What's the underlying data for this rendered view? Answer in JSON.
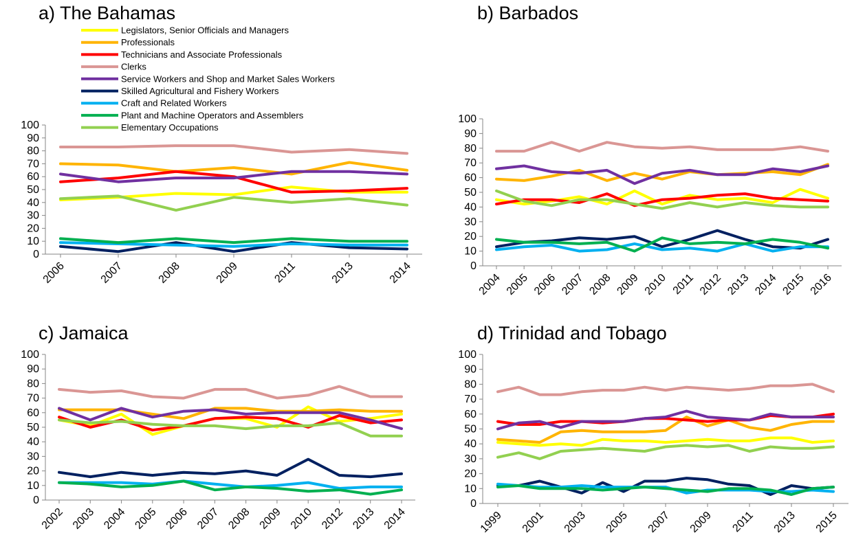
{
  "colors": {
    "Legislators, Senior Officials and Managers": "#ffff00",
    "Professionals": "#ffb400",
    "Technicians and Associate Professionals": "#ff0000",
    "Clerks": "#da9694",
    "Service Workers and Shop and Market Sales Workers": "#7030a0",
    "Skilled Agricultural and Fishery Workers": "#002060",
    "Craft and Related Workers": "#00b0f0",
    "Plant and Machine Operators and Assemblers": "#00b050",
    "Elementary Occupations": "#92d050"
  },
  "legend_entries": [
    "Legislators, Senior Officials and Managers",
    "Professionals",
    "Technicians and Associate Professionals",
    "Clerks",
    "Service Workers and Shop and Market Sales Workers",
    "Skilled Agricultural and Fishery Workers",
    "Craft and Related Workers",
    "Plant and Machine Operators and Assemblers",
    "Elementary Occupations"
  ],
  "chart_data": [
    {
      "type": "line",
      "title": "a)   The Bahamas",
      "categories": [
        "2006",
        "2007",
        "2008",
        "2009",
        "2011",
        "2013",
        "2014"
      ],
      "ylim": [
        0,
        100
      ],
      "yticks": [
        "0",
        "10",
        "20",
        "30",
        "40",
        "50",
        "60",
        "70",
        "80",
        "90",
        "100"
      ],
      "legend": "top",
      "series": [
        {
          "name": "Legislators, Senior Officials and Managers",
          "values": [
            42,
            44,
            47,
            46,
            52,
            48,
            48
          ]
        },
        {
          "name": "Professionals",
          "values": [
            70,
            69,
            64,
            67,
            62,
            71,
            65
          ]
        },
        {
          "name": "Technicians and Associate Professionals",
          "values": [
            56,
            59,
            64,
            60,
            48,
            49,
            51
          ]
        },
        {
          "name": "Clerks",
          "values": [
            83,
            83,
            84,
            84,
            79,
            81,
            78
          ]
        },
        {
          "name": "Service Workers and Shop and Market Sales Workers",
          "values": [
            62,
            56,
            59,
            59,
            64,
            64,
            62
          ]
        },
        {
          "name": "Skilled Agricultural and Fishery Workers",
          "values": [
            6,
            2,
            9,
            2,
            9,
            5,
            4
          ]
        },
        {
          "name": "Craft and Related Workers",
          "values": [
            9,
            8,
            7,
            6,
            8,
            7,
            7
          ]
        },
        {
          "name": "Plant and Machine Operators and Assemblers",
          "values": [
            12,
            9,
            12,
            9,
            12,
            10,
            10
          ]
        },
        {
          "name": "Elementary Occupations",
          "values": [
            43,
            45,
            34,
            44,
            40,
            43,
            38
          ]
        }
      ]
    },
    {
      "type": "line",
      "title": "b)   Barbados",
      "categories": [
        "2004",
        "2005",
        "2006",
        "2007",
        "2008",
        "2009",
        "2010",
        "2011",
        "2012",
        "2013",
        "2014",
        "2015",
        "2016"
      ],
      "ylim": [
        0,
        100
      ],
      "yticks": [
        "0",
        "10",
        "20",
        "30",
        "40",
        "50",
        "60",
        "70",
        "80",
        "90",
        "100"
      ],
      "series": [
        {
          "name": "Legislators, Senior Officials and Managers",
          "values": [
            45,
            42,
            44,
            47,
            42,
            51,
            42,
            48,
            45,
            46,
            43,
            52,
            46
          ]
        },
        {
          "name": "Professionals",
          "values": [
            59,
            58,
            61,
            65,
            58,
            63,
            59,
            64,
            62,
            63,
            64,
            62,
            69
          ]
        },
        {
          "name": "Technicians and Associate Professionals",
          "values": [
            42,
            45,
            45,
            43,
            49,
            41,
            45,
            46,
            48,
            49,
            46,
            45,
            44
          ]
        },
        {
          "name": "Clerks",
          "values": [
            78,
            78,
            84,
            78,
            84,
            81,
            80,
            81,
            79,
            79,
            79,
            81,
            78
          ]
        },
        {
          "name": "Service Workers and Shop and Market Sales Workers",
          "values": [
            66,
            68,
            64,
            63,
            65,
            56,
            63,
            65,
            62,
            62,
            66,
            64,
            68
          ]
        },
        {
          "name": "Skilled Agricultural and Fishery Workers",
          "values": [
            13,
            16,
            17,
            19,
            18,
            20,
            13,
            18,
            24,
            18,
            13,
            12,
            18
          ]
        },
        {
          "name": "Craft and Related Workers",
          "values": [
            11,
            13,
            14,
            10,
            11,
            15,
            11,
            12,
            10,
            15,
            10,
            13,
            13
          ]
        },
        {
          "name": "Plant and Machine Operators and Assemblers",
          "values": [
            18,
            16,
            16,
            15,
            16,
            10,
            19,
            15,
            16,
            15,
            18,
            16,
            12
          ]
        },
        {
          "name": "Elementary Occupations",
          "values": [
            51,
            44,
            41,
            45,
            45,
            42,
            39,
            43,
            40,
            43,
            41,
            40,
            40
          ]
        }
      ]
    },
    {
      "type": "line",
      "title": "c)   Jamaica",
      "categories": [
        "2002",
        "2003",
        "2004",
        "2005",
        "2006",
        "2007",
        "2008",
        "2009",
        "2010",
        "2012",
        "2013",
        "2014"
      ],
      "ylim": [
        0,
        100
      ],
      "yticks": [
        "0",
        "10",
        "20",
        "30",
        "40",
        "50",
        "60",
        "70",
        "80",
        "90",
        "100"
      ],
      "series": [
        {
          "name": "Legislators, Senior Officials and Managers",
          "values": [
            55,
            51,
            59,
            45,
            51,
            56,
            56,
            50,
            64,
            54,
            56,
            59
          ]
        },
        {
          "name": "Professionals",
          "values": [
            62,
            62,
            62,
            59,
            56,
            63,
            63,
            61,
            61,
            62,
            61,
            61
          ]
        },
        {
          "name": "Technicians and Associate Professionals",
          "values": [
            57,
            50,
            55,
            48,
            51,
            56,
            57,
            56,
            50,
            58,
            53,
            55
          ]
        },
        {
          "name": "Clerks",
          "values": [
            76,
            74,
            75,
            71,
            70,
            76,
            76,
            70,
            72,
            78,
            71,
            71
          ]
        },
        {
          "name": "Service Workers and Shop and Market Sales Workers",
          "values": [
            63,
            55,
            63,
            57,
            61,
            62,
            59,
            60,
            60,
            60,
            55,
            49
          ]
        },
        {
          "name": "Skilled Agricultural and Fishery Workers",
          "values": [
            19,
            16,
            19,
            17,
            19,
            18,
            20,
            17,
            28,
            17,
            16,
            18
          ]
        },
        {
          "name": "Craft and Related Workers",
          "values": [
            12,
            12,
            12,
            11,
            13,
            11,
            9,
            10,
            12,
            8,
            9,
            9
          ]
        },
        {
          "name": "Plant and Machine Operators and Assemblers",
          "values": [
            12,
            11,
            9,
            10,
            13,
            7,
            9,
            8,
            6,
            7,
            4,
            7
          ]
        },
        {
          "name": "Elementary Occupations",
          "values": [
            55,
            53,
            54,
            52,
            51,
            51,
            49,
            51,
            51,
            53,
            44,
            44
          ]
        }
      ]
    },
    {
      "type": "line",
      "title": "d)   Trinidad and Tobago",
      "x": [
        1999,
        2000,
        2001,
        2002,
        2003,
        2004,
        2005,
        2006,
        2007,
        2008,
        2009,
        2010,
        2011,
        2012,
        2013,
        2014,
        2015
      ],
      "xticks": [
        "1999",
        "2001",
        "2003",
        "2005",
        "2007",
        "2009",
        "2011",
        "2013",
        "2015"
      ],
      "ylim": [
        0,
        100
      ],
      "yticks": [
        "0",
        "10",
        "20",
        "30",
        "40",
        "50",
        "60",
        "70",
        "80",
        "90",
        "100"
      ],
      "series": [
        {
          "name": "Legislators, Senior Officials and Managers",
          "values": [
            41,
            40,
            39,
            40,
            39,
            43,
            42,
            42,
            41,
            42,
            43,
            42,
            42,
            44,
            44,
            41,
            42
          ]
        },
        {
          "name": "Professionals",
          "values": [
            43,
            42,
            41,
            48,
            49,
            48,
            48,
            48,
            49,
            58,
            52,
            56,
            51,
            49,
            53,
            55,
            55
          ]
        },
        {
          "name": "Technicians and Associate Professionals",
          "values": [
            55,
            53,
            53,
            55,
            55,
            54,
            55,
            57,
            57,
            56,
            55,
            56,
            56,
            59,
            58,
            58,
            60
          ]
        },
        {
          "name": "Clerks",
          "values": [
            75,
            78,
            73,
            73,
            75,
            76,
            76,
            78,
            76,
            78,
            77,
            76,
            77,
            79,
            79,
            80,
            75
          ]
        },
        {
          "name": "Service Workers and Shop and Market Sales Workers",
          "values": [
            50,
            54,
            55,
            51,
            55,
            55,
            55,
            57,
            58,
            62,
            58,
            57,
            56,
            60,
            58,
            58,
            58
          ]
        },
        {
          "name": "Skilled Agricultural and Fishery Workers",
          "values": [
            12,
            12,
            15,
            11,
            7,
            14,
            8,
            15,
            15,
            17,
            16,
            13,
            12,
            6,
            12,
            10,
            11
          ]
        },
        {
          "name": "Craft and Related Workers",
          "values": [
            13,
            12,
            11,
            11,
            12,
            11,
            11,
            11,
            11,
            7,
            9,
            9,
            9,
            8,
            8,
            9,
            8
          ]
        },
        {
          "name": "Plant and Machine Operators and Assemblers",
          "values": [
            11,
            12,
            10,
            10,
            10,
            9,
            10,
            11,
            10,
            9,
            8,
            10,
            10,
            9,
            6,
            10,
            11
          ]
        },
        {
          "name": "Elementary Occupations",
          "values": [
            31,
            34,
            30,
            35,
            36,
            37,
            36,
            35,
            38,
            39,
            38,
            39,
            35,
            38,
            37,
            37,
            38
          ]
        }
      ]
    }
  ]
}
